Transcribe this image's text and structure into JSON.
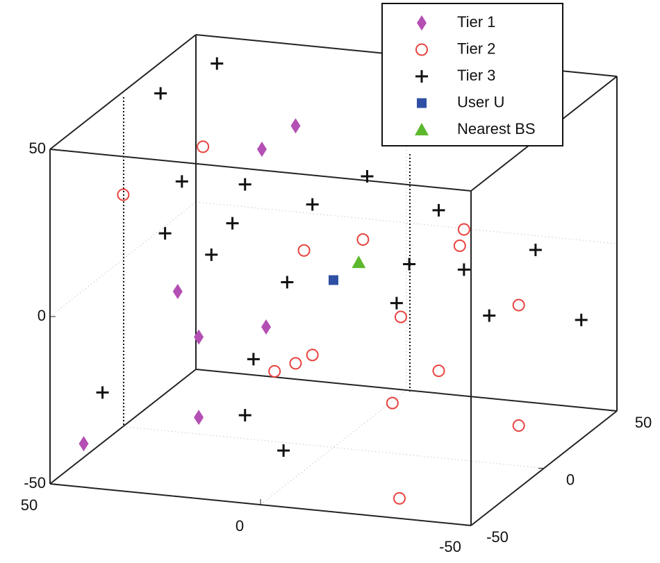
{
  "chart_data": {
    "type": "scatter3d",
    "xlim": [
      -50,
      50
    ],
    "ylim": [
      -50,
      50
    ],
    "zlim": [
      -50,
      50
    ],
    "xticks": [
      -50,
      0,
      50
    ],
    "yticks": [
      -50,
      0,
      50
    ],
    "zticks": [
      -50,
      0,
      50
    ],
    "grid": true,
    "legend": "upper right",
    "series": [
      {
        "name": "Tier 1",
        "marker": "diamond",
        "color": "#b44fb4",
        "x": [
          9,
          17,
          37,
          16,
          32,
          32,
          42
        ],
        "y": [
          0,
          0,
          0,
          0,
          0,
          0,
          -50
        ],
        "z": [
          45,
          37,
          -8,
          -16,
          -21,
          -45,
          -37
        ]
      },
      {
        "name": "Tier 2",
        "marker": "circle",
        "color": "#e8423f",
        "x": [
          31,
          43,
          7,
          -7,
          -31,
          -30,
          -16,
          -44,
          5,
          9,
          14,
          -25,
          -14,
          -44,
          -33
        ],
        "y": [
          0,
          -20,
          0,
          0,
          0,
          0,
          0,
          0,
          0,
          0,
          0,
          0,
          0,
          0,
          -50
        ],
        "z": [
          36,
          27,
          8,
          13,
          19,
          14,
          -9,
          -2,
          -23,
          -26,
          -29,
          -24,
          -35,
          -38,
          -44
        ]
      },
      {
        "name": "Tier 3",
        "marker": "plus",
        "color": "#111111",
        "x": [
          45,
          48,
          36,
          21,
          -8,
          5,
          -25,
          24,
          40,
          29,
          -18,
          11,
          -31,
          -48,
          -15,
          -37,
          -45,
          19,
          41,
          21,
          -2
        ],
        "y": [
          50,
          20,
          0,
          0,
          0,
          0,
          0,
          0,
          0,
          0,
          0,
          0,
          0,
          0,
          0,
          0,
          40,
          0,
          -40,
          0,
          -40
        ],
        "z": [
          42,
          43,
          25,
          26,
          32,
          22,
          24,
          14,
          9,
          4,
          7,
          -2,
          7,
          15,
          -5,
          -6,
          -20,
          -26,
          -25,
          -43,
          -37
        ]
      },
      {
        "name": "User U",
        "marker": "square",
        "color": "#2e4fa3",
        "x": [
          0
        ],
        "y": [
          0
        ],
        "z": [
          0
        ]
      },
      {
        "name": "Nearest BS",
        "marker": "triangle",
        "color": "#5cb82e",
        "x": [
          -6
        ],
        "y": [
          0
        ],
        "z": [
          6
        ]
      }
    ]
  }
}
